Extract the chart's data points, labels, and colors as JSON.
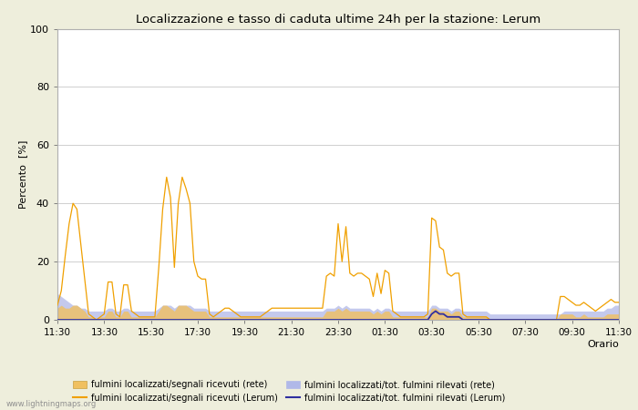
{
  "title": "Localizzazione e tasso di caduta ultime 24h per la stazione: Lerum",
  "ylabel": "Percento  [%]",
  "xlabel": "Orario",
  "ylim": [
    0,
    100
  ],
  "watermark": "www.lightningmaps.org",
  "x_labels": [
    "11:30",
    "13:30",
    "15:30",
    "17:30",
    "19:30",
    "21:30",
    "23:30",
    "01:30",
    "03:30",
    "05:30",
    "07:30",
    "09:30",
    "11:30"
  ],
  "color_orange_line": "#f0a000",
  "color_orange_fill": "#f0c060",
  "color_blue_fill": "#b0b8e8",
  "color_blue_line": "#3030a0",
  "legend_labels": [
    "fulmini localizzati/segnali ricevuti (rete)",
    "fulmini localizzati/segnali ricevuti (Lerum)",
    "fulmini localizzati/tot. fulmini rilevati (rete)",
    "fulmini localizzati/tot. fulmini rilevati (Lerum)"
  ],
  "n_points": 145,
  "orange_line": [
    5,
    10,
    22,
    33,
    40,
    38,
    26,
    14,
    2,
    1,
    0,
    1,
    2,
    13,
    13,
    2,
    1,
    12,
    12,
    3,
    2,
    1,
    1,
    1,
    1,
    1,
    18,
    38,
    49,
    42,
    18,
    40,
    49,
    45,
    40,
    20,
    15,
    14,
    14,
    2,
    1,
    2,
    3,
    4,
    4,
    3,
    2,
    1,
    1,
    1,
    1,
    1,
    1,
    2,
    3,
    4,
    4,
    4,
    4,
    4,
    4,
    4,
    4,
    4,
    4,
    4,
    4,
    4,
    4,
    15,
    16,
    15,
    33,
    20,
    32,
    16,
    15,
    16,
    16,
    15,
    14,
    8,
    16,
    9,
    17,
    16,
    3,
    2,
    1,
    1,
    1,
    1,
    1,
    1,
    1,
    2,
    35,
    34,
    25,
    24,
    16,
    15,
    16,
    16,
    2,
    1,
    1,
    1,
    1,
    1,
    1,
    0,
    0,
    0,
    0,
    0,
    0,
    0,
    0,
    0,
    0,
    0,
    0,
    0,
    0,
    0,
    0,
    0,
    0,
    8,
    8,
    7,
    6,
    5,
    5,
    6,
    5,
    4,
    3,
    4,
    5,
    6,
    7,
    6,
    6
  ],
  "orange_fill": [
    4,
    5,
    4,
    4,
    5,
    5,
    4,
    3,
    1,
    1,
    0,
    1,
    1,
    3,
    3,
    1,
    1,
    3,
    3,
    1,
    1,
    1,
    1,
    1,
    1,
    1,
    3,
    5,
    5,
    4,
    3,
    5,
    5,
    5,
    4,
    3,
    3,
    3,
    3,
    1,
    1,
    1,
    1,
    1,
    1,
    1,
    1,
    1,
    1,
    1,
    1,
    1,
    1,
    1,
    1,
    1,
    1,
    1,
    1,
    1,
    1,
    1,
    1,
    1,
    1,
    1,
    1,
    1,
    1,
    3,
    3,
    3,
    4,
    3,
    4,
    3,
    3,
    3,
    3,
    3,
    3,
    2,
    3,
    2,
    3,
    3,
    1,
    1,
    1,
    1,
    1,
    1,
    1,
    1,
    1,
    1,
    4,
    4,
    3,
    3,
    3,
    2,
    3,
    3,
    1,
    1,
    1,
    1,
    1,
    1,
    1,
    0,
    0,
    0,
    0,
    0,
    0,
    0,
    0,
    0,
    0,
    0,
    0,
    0,
    0,
    0,
    0,
    0,
    0,
    2,
    2,
    2,
    2,
    1,
    1,
    2,
    1,
    1,
    1,
    1,
    1,
    2,
    2,
    2,
    2
  ],
  "blue_line": [
    0,
    0,
    0,
    0,
    0,
    0,
    0,
    0,
    0,
    0,
    0,
    0,
    0,
    0,
    0,
    0,
    0,
    0,
    0,
    0,
    0,
    0,
    0,
    0,
    0,
    0,
    0,
    0,
    0,
    0,
    0,
    0,
    0,
    0,
    0,
    0,
    0,
    0,
    0,
    0,
    0,
    0,
    0,
    0,
    0,
    0,
    0,
    0,
    0,
    0,
    0,
    0,
    0,
    0,
    0,
    0,
    0,
    0,
    0,
    0,
    0,
    0,
    0,
    0,
    0,
    0,
    0,
    0,
    0,
    0,
    0,
    0,
    0,
    0,
    0,
    0,
    0,
    0,
    0,
    0,
    0,
    0,
    0,
    0,
    0,
    0,
    0,
    0,
    0,
    0,
    0,
    0,
    0,
    0,
    0,
    0,
    2,
    3,
    2,
    2,
    1,
    1,
    1,
    1,
    0,
    0,
    0,
    0,
    0,
    0,
    0,
    0,
    0,
    0,
    0,
    0,
    0,
    0,
    0,
    0,
    0,
    0,
    0,
    0,
    0,
    0,
    0,
    0,
    0,
    0,
    0,
    0,
    0,
    0,
    0,
    0,
    0,
    0,
    0,
    0,
    0,
    0,
    0,
    0,
    0
  ],
  "blue_fill": [
    9,
    8,
    7,
    6,
    5,
    5,
    4,
    4,
    3,
    3,
    3,
    3,
    3,
    4,
    4,
    3,
    3,
    4,
    4,
    3,
    3,
    3,
    3,
    3,
    3,
    3,
    4,
    5,
    5,
    5,
    4,
    5,
    5,
    5,
    5,
    4,
    4,
    4,
    4,
    3,
    3,
    3,
    3,
    3,
    3,
    3,
    3,
    3,
    3,
    3,
    3,
    3,
    3,
    3,
    3,
    3,
    3,
    3,
    3,
    3,
    3,
    3,
    3,
    3,
    3,
    3,
    3,
    3,
    3,
    4,
    4,
    4,
    5,
    4,
    5,
    4,
    4,
    4,
    4,
    4,
    4,
    3,
    4,
    3,
    4,
    4,
    3,
    3,
    3,
    3,
    3,
    3,
    3,
    3,
    3,
    3,
    5,
    5,
    4,
    4,
    4,
    3,
    4,
    4,
    3,
    3,
    3,
    3,
    3,
    3,
    3,
    2,
    2,
    2,
    2,
    2,
    2,
    2,
    2,
    2,
    2,
    2,
    2,
    2,
    2,
    2,
    2,
    2,
    2,
    2,
    3,
    3,
    3,
    3,
    3,
    3,
    3,
    3,
    3,
    3,
    3,
    4,
    4,
    5,
    5
  ]
}
